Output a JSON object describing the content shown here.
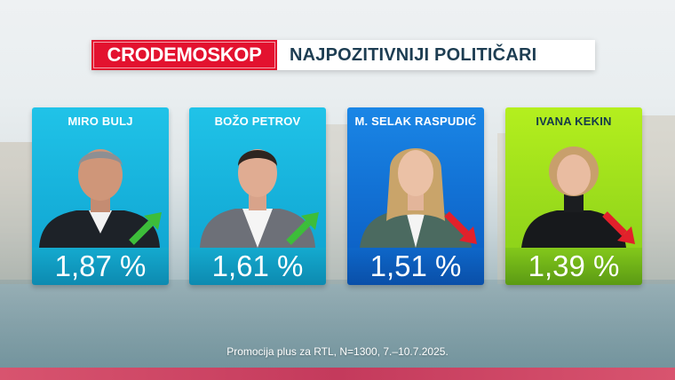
{
  "header": {
    "brand": "CRODEMOSKOP",
    "title": "NAJPOZITIVNIJI POLITIČARI"
  },
  "politicians": [
    {
      "name": "MIRO BULJ",
      "value": "1,87 %",
      "trend": "up",
      "trend_icon": "up-right-arrow-icon",
      "trend_color": "#3dbd3a",
      "card_color": "#1ab6e0"
    },
    {
      "name": "BOŽO PETROV",
      "value": "1,61 %",
      "trend": "up",
      "trend_icon": "up-right-arrow-icon",
      "trend_color": "#3dbd3a",
      "card_color": "#1ab6e0"
    },
    {
      "name": "M. SELAK RASPUDIĆ",
      "value": "1,51 %",
      "trend": "down",
      "trend_icon": "down-right-arrow-icon",
      "trend_color": "#e2202b",
      "card_color": "#1178d8"
    },
    {
      "name": "IVANA KEKIN",
      "value": "1,39 %",
      "trend": "down",
      "trend_icon": "down-right-arrow-icon",
      "trend_color": "#e2202b",
      "card_color": "#a3e21c"
    }
  ],
  "footer": {
    "source": "Promocija plus za RTL, N=1300, 7.–10.7.2025."
  },
  "colors": {
    "brand_red": "#e3122f",
    "title_navy": "#1d3d52",
    "bottom_band": "#c43a5c"
  }
}
